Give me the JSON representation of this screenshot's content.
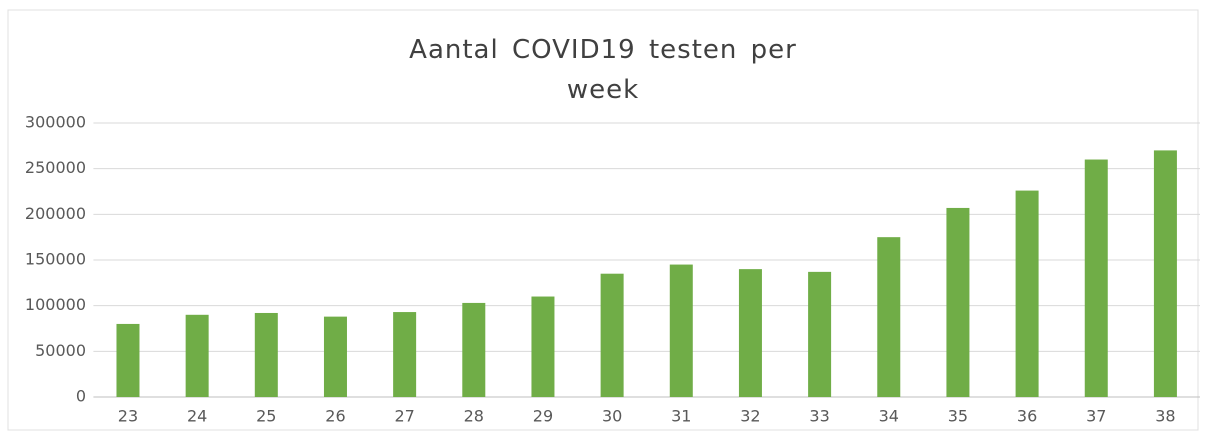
{
  "chart_data": {
    "type": "bar",
    "title": "Aantal COVID19 testen per week",
    "categories": [
      "23",
      "24",
      "25",
      "26",
      "27",
      "28",
      "29",
      "30",
      "31",
      "32",
      "33",
      "34",
      "35",
      "36",
      "37",
      "38"
    ],
    "values": [
      80000,
      90000,
      92000,
      88000,
      93000,
      103000,
      110000,
      135000,
      145000,
      140000,
      137000,
      175000,
      207000,
      226000,
      260000,
      270000
    ],
    "color": "#70ad47",
    "ylim": [
      0,
      300000
    ],
    "yticks": [
      0,
      50000,
      100000,
      150000,
      200000,
      250000,
      300000
    ],
    "grid": true
  }
}
